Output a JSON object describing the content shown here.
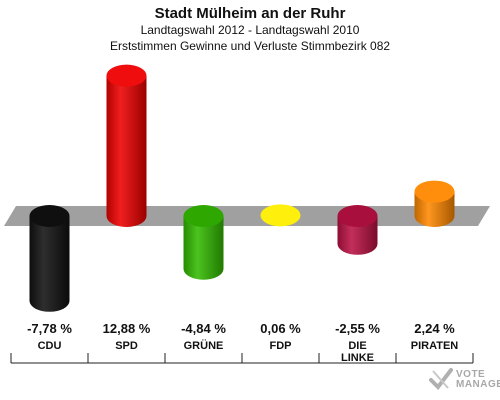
{
  "header": {
    "title": "Stadt Mülheim an der Ruhr",
    "subtitle_1": "Landtagswahl 2012 - Landtagswahl 2010",
    "subtitle_2": "Erststimmen Gewinne und Verluste Stimmbezirk 082"
  },
  "watermark": {
    "line1": "VOTE",
    "line2": "MANAGER",
    "icon": "checkmark-cross-icon"
  },
  "chart_data": {
    "type": "bar",
    "title": "Stadt Mülheim an der Ruhr",
    "subtitle": "Landtagswahl 2012 - Landtagswahl 2010 / Erststimmen Gewinne und Verluste Stimmbezirk 082",
    "unit": "%",
    "categories": [
      "CDU",
      "SPD",
      "GRÜNE",
      "FDP",
      "DIE LINKE",
      "PIRATEN"
    ],
    "category_lines": [
      [
        "CDU"
      ],
      [
        "SPD"
      ],
      [
        "GRÜNE"
      ],
      [
        "FDP"
      ],
      [
        "DIE",
        "LINKE"
      ],
      [
        "PIRATEN"
      ]
    ],
    "values": [
      -7.78,
      12.88,
      -4.84,
      0.06,
      -2.55,
      2.24
    ],
    "value_labels": [
      "-7,78 %",
      "12,88 %",
      "-4,84 %",
      "0,06 %",
      "-2,55 %",
      "2,24 %"
    ],
    "colors": [
      "#111111",
      "#ee0000",
      "#33bb00",
      "#ffee00",
      "#bb1144",
      "#ff8800"
    ],
    "baseline_band_color": "#a0a0a0",
    "ylim": [
      -10,
      14
    ],
    "grid": false,
    "legend": "none"
  }
}
